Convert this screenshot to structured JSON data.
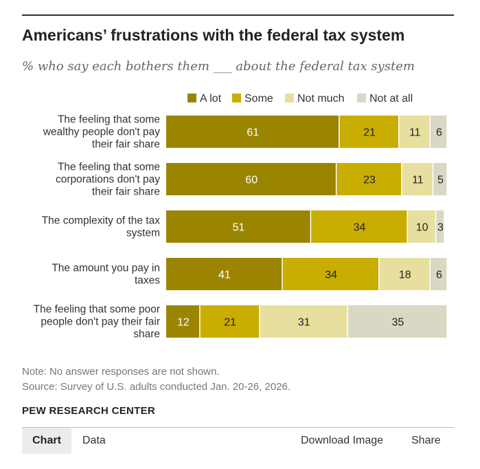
{
  "header": {
    "title": "Americans’ frustrations with the federal tax system",
    "subtitle": "% who say each bothers them ___ about the federal tax system"
  },
  "chart_data": {
    "type": "bar",
    "orientation": "horizontal",
    "stacked": true,
    "categories": [
      [
        "The feeling that some",
        "wealthy people don't pay",
        "their fair share"
      ],
      [
        "The feeling that some",
        "corporations don't pay",
        "their fair share"
      ],
      [
        "The complexity of the tax",
        "system"
      ],
      [
        "The amount you pay in",
        "taxes"
      ],
      [
        "The feeling that some poor",
        "people don't pay their fair",
        "share"
      ]
    ],
    "series": [
      {
        "name": "A lot",
        "color": "#9b8500",
        "label_color": "#ffffff",
        "values": [
          61,
          60,
          51,
          41,
          12
        ]
      },
      {
        "name": "Some",
        "color": "#c9ad00",
        "label_color": "#222222",
        "values": [
          21,
          23,
          34,
          34,
          21
        ]
      },
      {
        "name": "Not much",
        "color": "#e6df9e",
        "label_color": "#222222",
        "values": [
          11,
          11,
          10,
          18,
          31
        ]
      },
      {
        "name": "Not at all",
        "color": "#d8d8c4",
        "label_color": "#222222",
        "values": [
          6,
          5,
          3,
          6,
          35
        ]
      }
    ],
    "xlim": [
      0,
      100
    ],
    "legend": "top",
    "grid": false
  },
  "notes": {
    "note": "Note: No answer responses are not shown.",
    "source": "Source: Survey of U.S. adults conducted Jan. 20-26, 2026."
  },
  "brand": "PEW RESEARCH CENTER",
  "footer": {
    "chart_tab": "Chart",
    "data_tab": "Data",
    "download": "Download Image",
    "share": "Share"
  }
}
